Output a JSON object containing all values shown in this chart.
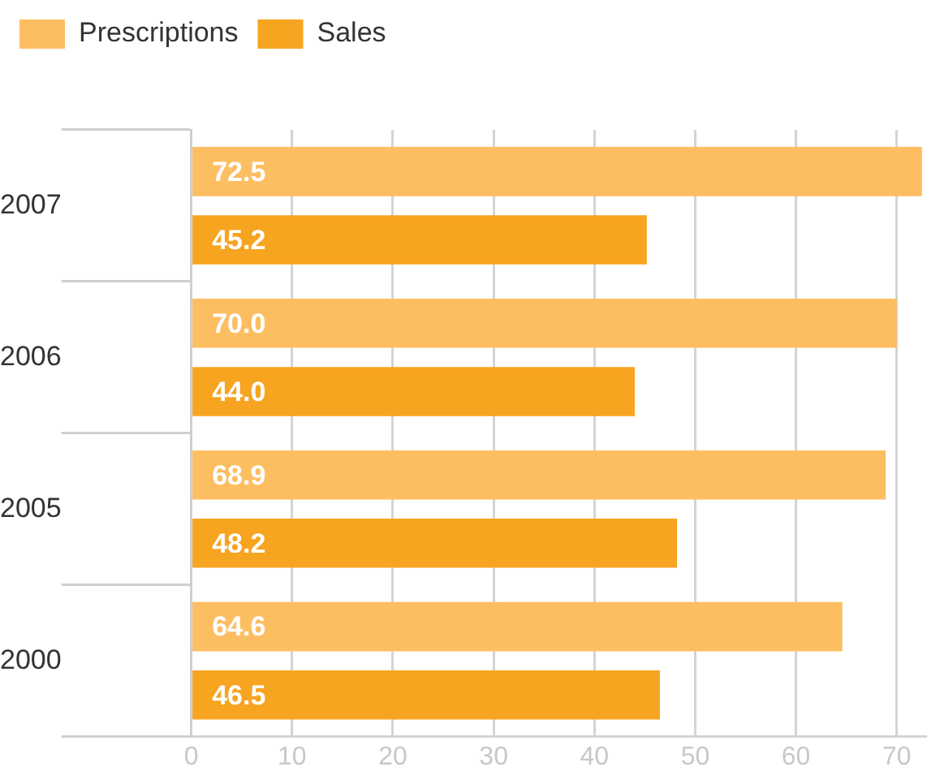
{
  "chart_data": {
    "type": "bar",
    "orientation": "horizontal",
    "categories": [
      "2007",
      "2006",
      "2005",
      "2000"
    ],
    "series": [
      {
        "name": "Prescriptions",
        "color": "#fdbe62",
        "values": [
          72.5,
          70.0,
          68.9,
          64.6
        ],
        "value_labels": [
          "72.5",
          "70.0",
          "68.9",
          "64.6"
        ]
      },
      {
        "name": "Sales",
        "color": "#f7a420",
        "values": [
          45.2,
          44.0,
          48.2,
          46.5
        ],
        "value_labels": [
          "45.2",
          "44.0",
          "48.2",
          "46.5"
        ]
      }
    ],
    "xlim": [
      0,
      73
    ],
    "xticks": [
      0,
      10,
      20,
      30,
      40,
      50,
      60,
      70
    ],
    "grid": "x",
    "legend": "top left"
  }
}
